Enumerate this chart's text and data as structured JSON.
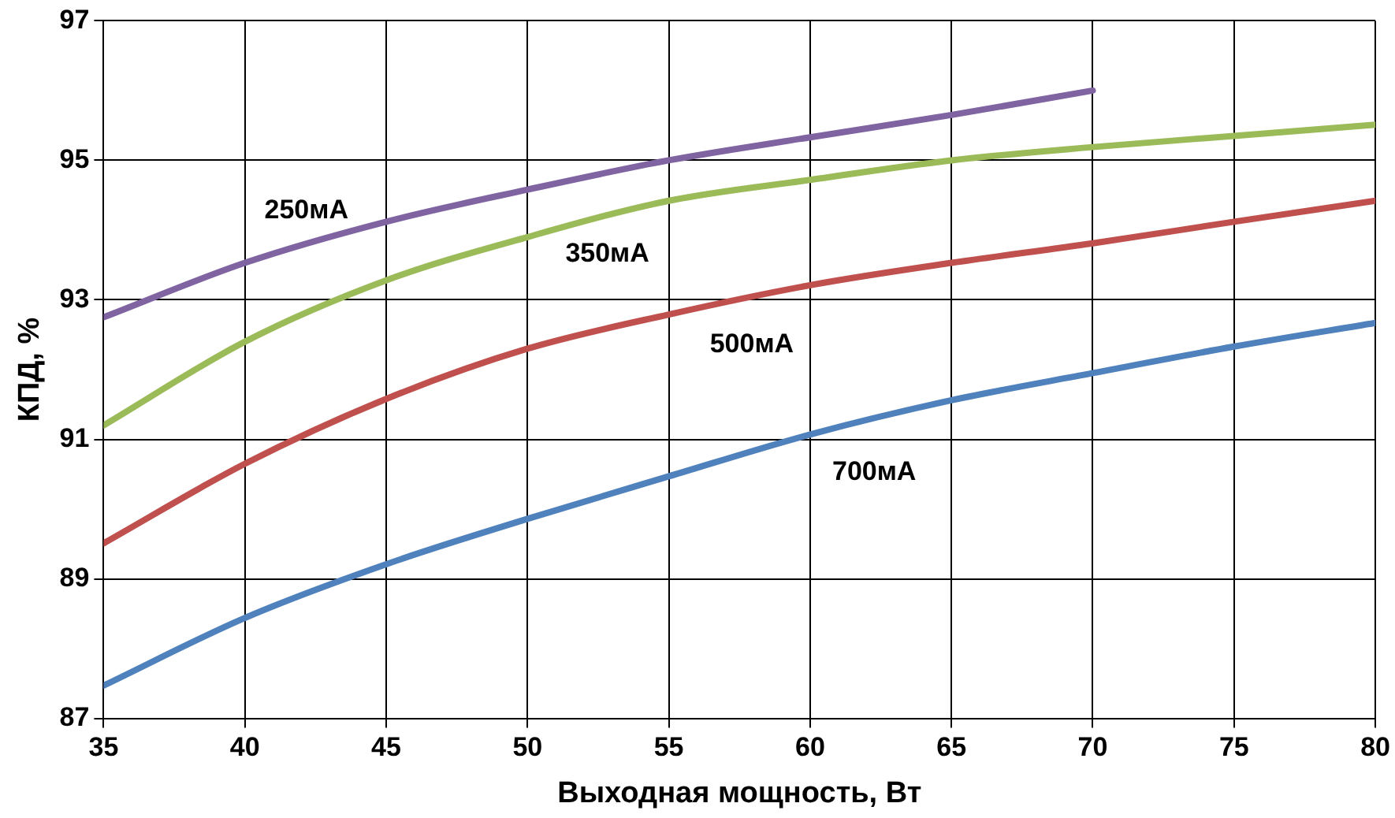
{
  "chart_data": {
    "type": "line",
    "xlabel": "Выходная мощность, Вт",
    "ylabel": "КПД, %",
    "xlim": [
      35,
      80
    ],
    "xticks": [
      35,
      40,
      45,
      50,
      55,
      60,
      65,
      70,
      75,
      80
    ],
    "ylim": [
      87,
      97
    ],
    "yticks": [
      87,
      89,
      91,
      93,
      95,
      97
    ],
    "x": [
      35,
      40,
      45,
      50,
      55,
      60,
      65,
      70,
      75,
      80
    ],
    "grid": true,
    "legend": false,
    "marker": "none",
    "line_style": "solid",
    "series": [
      {
        "name": "250мА",
        "color": "#8064a2",
        "values": [
          92.75,
          93.53,
          94.12,
          94.58,
          95.0,
          95.33,
          95.65,
          96.0,
          null,
          null
        ]
      },
      {
        "name": "350мА",
        "color": "#9bbb59",
        "values": [
          91.2,
          92.4,
          93.28,
          93.9,
          94.42,
          94.72,
          95.0,
          95.19,
          95.35,
          95.51
        ]
      },
      {
        "name": "500мА",
        "color": "#c0504d",
        "values": [
          89.51,
          90.65,
          91.58,
          92.3,
          92.79,
          93.21,
          93.53,
          93.81,
          94.12,
          94.42
        ]
      },
      {
        "name": "700мА",
        "color": "#4f81bd",
        "values": [
          87.47,
          88.44,
          89.21,
          89.86,
          90.47,
          91.07,
          91.56,
          91.95,
          92.33,
          92.67
        ]
      }
    ]
  }
}
